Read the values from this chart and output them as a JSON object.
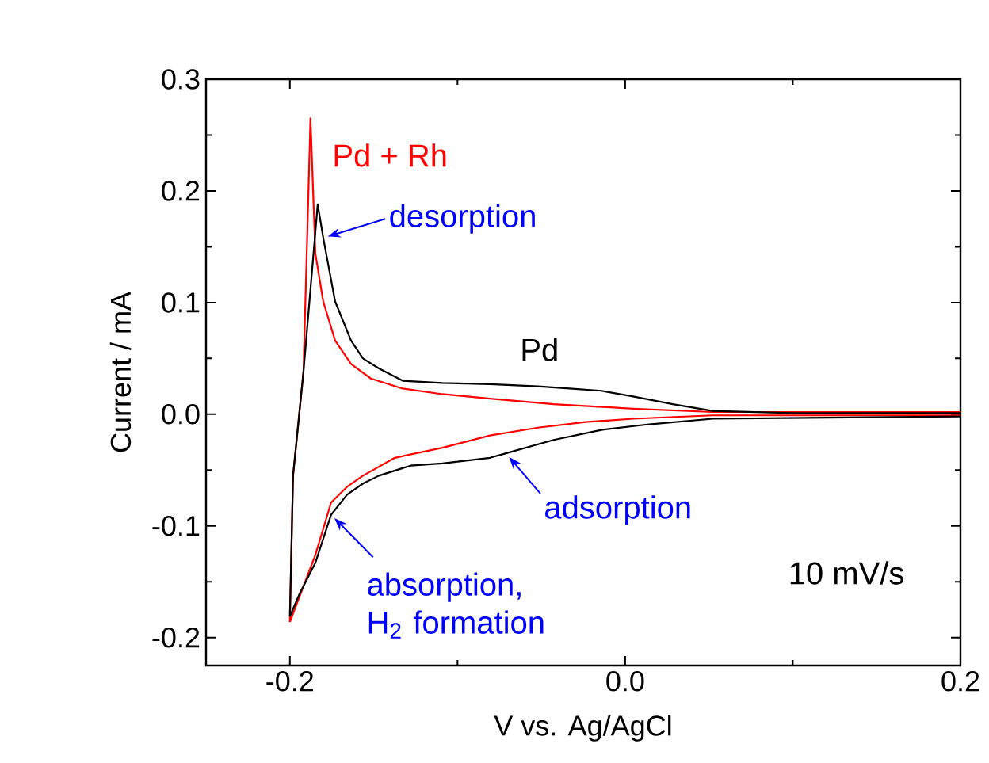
{
  "chart_data": {
    "type": "line",
    "xlabel": "V vs. Ag/AgCl",
    "ylabel": "Current / mA",
    "xlim": [
      -0.25,
      0.2
    ],
    "ylim": [
      -0.225,
      0.3
    ],
    "xticks": [
      {
        "value": -0.2,
        "label": "-0.2"
      },
      {
        "value": 0.0,
        "label": "0.0"
      },
      {
        "value": 0.2,
        "label": "0.2"
      }
    ],
    "yticks": [
      {
        "value": -0.2,
        "label": "-0.2"
      },
      {
        "value": -0.1,
        "label": "-0.1"
      },
      {
        "value": 0.0,
        "label": "0.0"
      },
      {
        "value": 0.1,
        "label": "0.1"
      },
      {
        "value": 0.2,
        "label": "0.2"
      },
      {
        "value": 0.3,
        "label": "0.3"
      }
    ],
    "series": [
      {
        "name": "Pd + Rh",
        "color": "#ff0000",
        "x": [
          -0.2,
          -0.1981,
          -0.1919,
          -0.1877,
          -0.1848,
          -0.1801,
          -0.173,
          -0.1635,
          -0.1517,
          -0.1327,
          -0.109,
          -0.0806,
          -0.0427,
          0.0047,
          0.0521,
          0.2
        ],
        "values": [
          -0.186,
          -0.055,
          0.038,
          0.265,
          0.144,
          0.101,
          0.066,
          0.045,
          0.032,
          0.023,
          0.018,
          0.014,
          0.009,
          0.005,
          0.002,
          0.002
        ]
      },
      {
        "color": "#ff0000",
        "x": [
          -0.2,
          -0.1848,
          -0.1754,
          -0.1659,
          -0.1564,
          -0.1374,
          -0.109,
          -0.0806,
          -0.0521,
          -0.0237,
          0.0047,
          0.0521,
          0.2
        ],
        "values": [
          -0.186,
          -0.126,
          -0.079,
          -0.065,
          -0.055,
          -0.039,
          -0.03,
          -0.019,
          -0.012,
          -0.007,
          -0.004,
          -0.001,
          -0.001
        ]
      },
      {
        "name": "Pd",
        "color": "#000000",
        "x": [
          -0.2,
          -0.1981,
          -0.1919,
          -0.1834,
          -0.1801,
          -0.173,
          -0.1635,
          -0.1564,
          -0.1469,
          -0.1327,
          -0.109,
          -0.0806,
          -0.0521,
          -0.0332,
          -0.0142,
          0.0047,
          0.0284,
          0.0521,
          0.0995,
          0.2
        ],
        "values": [
          -0.181,
          -0.055,
          0.038,
          0.188,
          0.158,
          0.101,
          0.066,
          0.05,
          0.041,
          0.03,
          0.028,
          0.027,
          0.025,
          0.023,
          0.021,
          0.016,
          0.009,
          0.003,
          0.001,
          0.001
        ]
      },
      {
        "color": "#000000",
        "x": [
          -0.2,
          -0.1943,
          -0.1848,
          -0.1754,
          -0.1659,
          -0.1564,
          -0.1469,
          -0.128,
          -0.109,
          -0.0806,
          -0.0711,
          -0.0427,
          -0.0142,
          0.0142,
          0.0521,
          0.2
        ],
        "values": [
          -0.181,
          -0.161,
          -0.133,
          -0.09,
          -0.072,
          -0.062,
          -0.055,
          -0.046,
          -0.044,
          -0.039,
          -0.035,
          -0.023,
          -0.014,
          -0.009,
          -0.004,
          -0.002
        ]
      }
    ],
    "annotations": [
      {
        "text": "desorption",
        "x": -0.1801,
        "y": 0.158
      },
      {
        "text": "adsorption",
        "x": -0.0711,
        "y": -0.035
      },
      {
        "text": "absorption, H$_{2}$ formation",
        "x": -0.1754,
        "y": -0.09
      },
      "10 mV/s"
    ]
  }
}
